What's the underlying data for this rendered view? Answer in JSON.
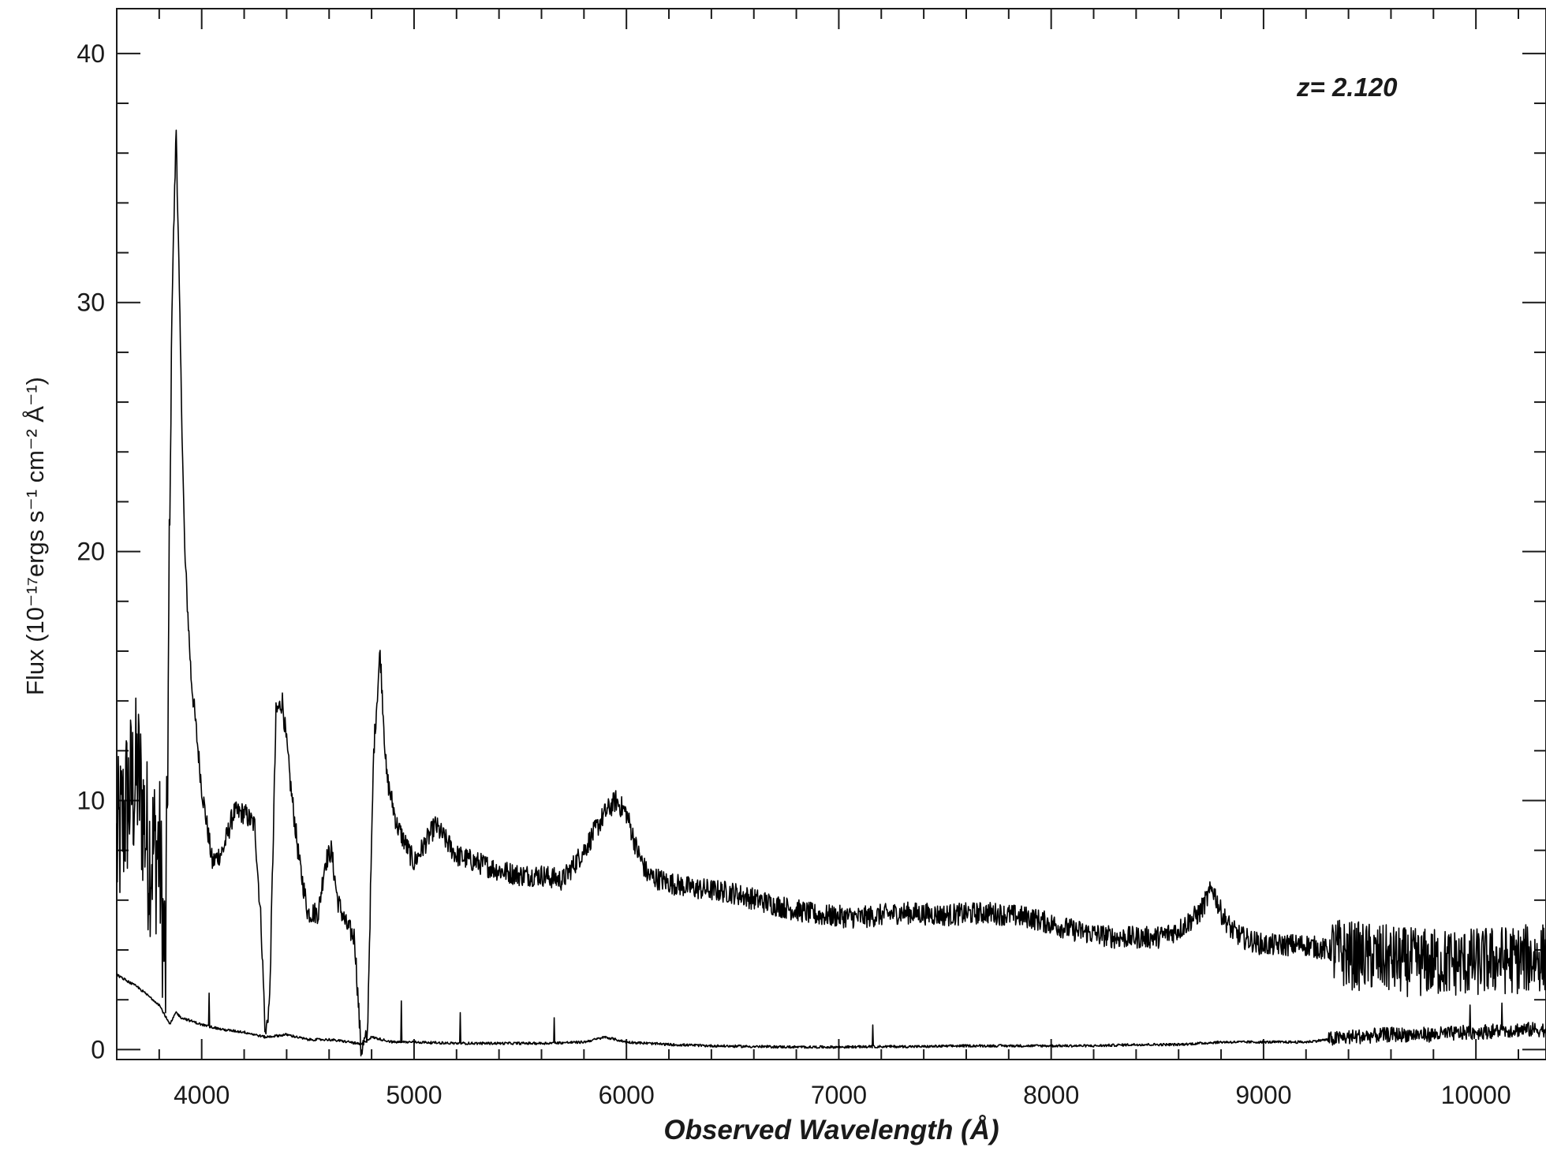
{
  "chart_data": {
    "type": "line",
    "xlabel": "Observed Wavelength (Å)",
    "ylabel": "Flux (10⁻¹⁷ergs s⁻¹ cm⁻² Å⁻¹)",
    "annotation": "z= 2.120",
    "xlim": [
      3600,
      10330
    ],
    "ylim": [
      -0.4,
      41.8
    ],
    "x_ticks": [
      4000,
      5000,
      6000,
      7000,
      8000,
      9000,
      10000
    ],
    "y_ticks": [
      0,
      10,
      20,
      30,
      40
    ],
    "grid": false,
    "line_color": "#000000",
    "series": [
      {
        "x": [
          3600,
          3650,
          3700,
          3750,
          3800,
          3830,
          3860,
          3880,
          3900,
          3920,
          3950,
          4000,
          4050,
          4100,
          4150,
          4200,
          4250,
          4280,
          4300,
          4320,
          4350,
          4380,
          4420,
          4460,
          4500,
          4550,
          4580,
          4610,
          4640,
          4680,
          4720,
          4750,
          4780,
          4810,
          4840,
          4870,
          4920,
          5000,
          5100,
          5200,
          5300,
          5400,
          5500,
          5600,
          5700,
          5800,
          5900,
          5950,
          6000,
          6050,
          6100,
          6200,
          6300,
          6400,
          6500,
          6700,
          6900,
          7100,
          7300,
          7500,
          7700,
          7900,
          8100,
          8300,
          8500,
          8600,
          8700,
          8760,
          8800,
          8850,
          8900,
          9000,
          9100,
          9200,
          9300,
          9400,
          9500,
          9600,
          9700,
          9800,
          9900,
          10000,
          10100,
          10200,
          10300
        ],
        "values": [
          8.0,
          10.0,
          11.0,
          8.0,
          8.0,
          3.0,
          30.0,
          37.0,
          28.0,
          20.0,
          15.0,
          10.5,
          7.5,
          8.0,
          9.5,
          9.5,
          9.0,
          5.0,
          0.5,
          2.0,
          13.5,
          14.0,
          10.5,
          7.5,
          5.5,
          5.5,
          7.5,
          8.0,
          6.0,
          5.0,
          4.5,
          0.0,
          0.5,
          12.0,
          16.0,
          11.0,
          9.0,
          7.5,
          9.0,
          7.8,
          7.5,
          7.2,
          7.0,
          7.0,
          6.8,
          8.0,
          9.5,
          10.0,
          9.5,
          8.0,
          7.0,
          6.7,
          6.5,
          6.4,
          6.3,
          5.8,
          5.4,
          5.3,
          5.5,
          5.4,
          5.5,
          5.3,
          4.8,
          4.5,
          4.5,
          4.8,
          5.5,
          6.5,
          5.5,
          4.8,
          4.5,
          4.2,
          4.2,
          4.2,
          4.0,
          3.8,
          3.7,
          3.6,
          3.5,
          3.5,
          3.5,
          3.5,
          3.6,
          3.6,
          3.7
        ]
      },
      {
        "x": [
          3600,
          3700,
          3800,
          3850,
          3880,
          3900,
          4000,
          4100,
          4200,
          4300,
          4400,
          4500,
          4600,
          4700,
          4750,
          4800,
          4900,
          5000,
          5200,
          5400,
          5600,
          5800,
          5900,
          6000,
          6200,
          6400,
          6600,
          6800,
          7000,
          7200,
          7400,
          7600,
          7800,
          8000,
          8200,
          8400,
          8600,
          8800,
          9000,
          9200,
          9400,
          9600,
          9800,
          10000,
          10200,
          10300
        ],
        "values": [
          3.0,
          2.5,
          1.8,
          1.0,
          1.5,
          1.3,
          1.0,
          0.8,
          0.7,
          0.5,
          0.6,
          0.4,
          0.4,
          0.3,
          0.2,
          0.5,
          0.3,
          0.3,
          0.25,
          0.25,
          0.25,
          0.3,
          0.5,
          0.3,
          0.2,
          0.15,
          0.12,
          0.1,
          0.1,
          0.12,
          0.12,
          0.15,
          0.15,
          0.15,
          0.15,
          0.2,
          0.2,
          0.3,
          0.3,
          0.3,
          0.5,
          0.6,
          0.6,
          0.7,
          0.8,
          0.8
        ]
      }
    ]
  }
}
